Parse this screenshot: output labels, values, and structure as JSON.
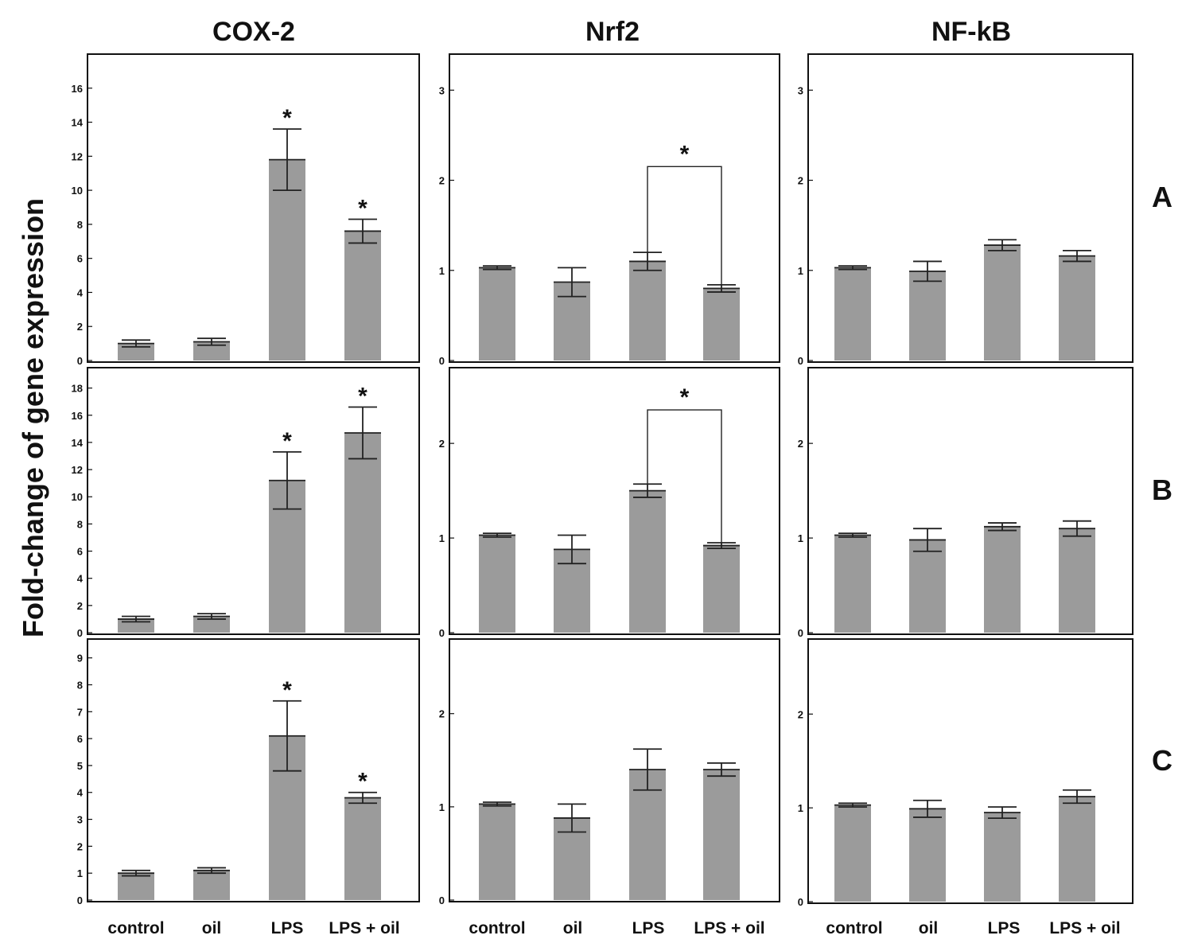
{
  "y_axis_label": "Fold-change of gene expression",
  "column_titles": [
    "COX-2",
    "Nrf2",
    "NF-kB"
  ],
  "row_labels": [
    "A",
    "B",
    "C"
  ],
  "categories": [
    "control",
    "oil",
    "LPS",
    "LPS + oil"
  ],
  "significance_marker": "*",
  "colors": {
    "bar": "#9b9b9b",
    "line": "#222222"
  },
  "chart_data": [
    {
      "type": "bar",
      "title": "COX-2",
      "panel": "A",
      "ylim": [
        0,
        18
      ],
      "yticks": [
        0,
        2,
        4,
        6,
        8,
        10,
        12,
        14,
        16
      ],
      "categories": [
        "control",
        "oil",
        "LPS",
        "LPS + oil"
      ],
      "values": [
        1.0,
        1.1,
        11.8,
        7.6
      ],
      "errors": [
        0.2,
        0.2,
        1.8,
        0.7
      ],
      "stars": [
        2,
        3
      ],
      "brackets": []
    },
    {
      "type": "bar",
      "title": "Nrf2",
      "panel": "A",
      "ylim": [
        0,
        3.4
      ],
      "yticks": [
        0,
        1,
        2,
        3
      ],
      "categories": [
        "control",
        "oil",
        "LPS",
        "LPS + oil"
      ],
      "values": [
        1.03,
        0.87,
        1.1,
        0.8
      ],
      "errors": [
        0.02,
        0.16,
        0.1,
        0.04
      ],
      "stars": [],
      "brackets": [
        [
          2,
          3
        ]
      ]
    },
    {
      "type": "bar",
      "title": "NF-kB",
      "panel": "A",
      "ylim": [
        0,
        3.4
      ],
      "yticks": [
        0,
        1,
        2,
        3
      ],
      "categories": [
        "control",
        "oil",
        "LPS",
        "LPS + oil"
      ],
      "values": [
        1.03,
        0.99,
        1.28,
        1.16
      ],
      "errors": [
        0.02,
        0.11,
        0.06,
        0.06
      ],
      "stars": [],
      "brackets": []
    },
    {
      "type": "bar",
      "title": "COX-2",
      "panel": "B",
      "ylim": [
        0,
        19.5
      ],
      "yticks": [
        0,
        2,
        4,
        6,
        8,
        10,
        12,
        14,
        16,
        18
      ],
      "categories": [
        "control",
        "oil",
        "LPS",
        "LPS + oil"
      ],
      "values": [
        1.0,
        1.2,
        11.2,
        14.7
      ],
      "errors": [
        0.2,
        0.2,
        2.1,
        1.9
      ],
      "stars": [
        2,
        3
      ],
      "brackets": []
    },
    {
      "type": "bar",
      "title": "Nrf2",
      "panel": "B",
      "ylim": [
        0,
        2.8
      ],
      "yticks": [
        0,
        1,
        2
      ],
      "categories": [
        "control",
        "oil",
        "LPS",
        "LPS + oil"
      ],
      "values": [
        1.03,
        0.88,
        1.5,
        0.92
      ],
      "errors": [
        0.02,
        0.15,
        0.07,
        0.03
      ],
      "stars": [],
      "brackets": [
        [
          2,
          3
        ]
      ]
    },
    {
      "type": "bar",
      "title": "NF-kB",
      "panel": "B",
      "ylim": [
        0,
        2.8
      ],
      "yticks": [
        0,
        1,
        2
      ],
      "categories": [
        "control",
        "oil",
        "LPS",
        "LPS + oil"
      ],
      "values": [
        1.03,
        0.98,
        1.12,
        1.1
      ],
      "errors": [
        0.02,
        0.12,
        0.04,
        0.08
      ],
      "stars": [],
      "brackets": []
    },
    {
      "type": "bar",
      "title": "COX-2",
      "panel": "C",
      "ylim": [
        0,
        9.7
      ],
      "yticks": [
        0,
        1,
        2,
        3,
        4,
        5,
        6,
        7,
        8,
        9
      ],
      "categories": [
        "control",
        "oil",
        "LPS",
        "LPS + oil"
      ],
      "values": [
        1.0,
        1.1,
        6.1,
        3.8
      ],
      "errors": [
        0.1,
        0.1,
        1.3,
        0.2
      ],
      "stars": [
        2,
        3
      ],
      "brackets": []
    },
    {
      "type": "bar",
      "title": "Nrf2",
      "panel": "C",
      "ylim": [
        0,
        2.8
      ],
      "yticks": [
        0,
        1,
        2
      ],
      "categories": [
        "control",
        "oil",
        "LPS",
        "LPS + oil"
      ],
      "values": [
        1.03,
        0.88,
        1.4,
        1.4
      ],
      "errors": [
        0.02,
        0.15,
        0.22,
        0.07
      ],
      "stars": [],
      "brackets": []
    },
    {
      "type": "bar",
      "title": "NF-kB",
      "panel": "C",
      "ylim": [
        0,
        2.8
      ],
      "yticks": [
        0,
        1,
        2
      ],
      "categories": [
        "control",
        "oil",
        "LPS",
        "LPS + oil"
      ],
      "values": [
        1.03,
        0.99,
        0.95,
        1.12
      ],
      "errors": [
        0.02,
        0.09,
        0.06,
        0.07
      ],
      "stars": [],
      "brackets": []
    }
  ]
}
